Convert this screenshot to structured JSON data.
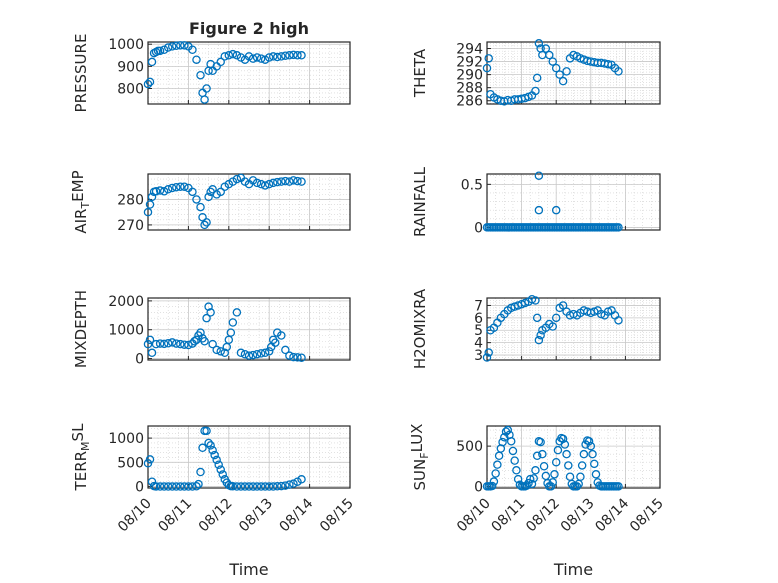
{
  "figure": {
    "title": "Figure 2 high"
  },
  "style": {
    "marker_color": "#0072bd",
    "grid_color": "#d0d0d0",
    "axis_color": "#262626"
  },
  "chart_data": [
    {
      "type": "scatter",
      "id": "pressure",
      "ylabel": "PRESSURE",
      "title": "Figure 2 high",
      "ylim": [
        730,
        1010
      ],
      "yticks": [
        800,
        900,
        1000
      ],
      "xlim": [
        0,
        5
      ],
      "x": [
        0.0,
        0.05,
        0.1,
        0.15,
        0.2,
        0.25,
        0.3,
        0.4,
        0.5,
        0.6,
        0.7,
        0.8,
        0.9,
        1.0,
        1.1,
        1.2,
        1.3,
        1.35,
        1.4,
        1.45,
        1.5,
        1.55,
        1.6,
        1.7,
        1.8,
        1.9,
        2.0,
        2.1,
        2.2,
        2.3,
        2.4,
        2.5,
        2.6,
        2.7,
        2.8,
        2.9,
        3.0,
        3.1,
        3.2,
        3.3,
        3.4,
        3.5,
        3.6,
        3.7,
        3.8
      ],
      "y": [
        820,
        830,
        920,
        960,
        965,
        970,
        970,
        975,
        985,
        990,
        993,
        995,
        995,
        990,
        975,
        930,
        860,
        780,
        750,
        800,
        880,
        910,
        880,
        900,
        920,
        945,
        950,
        955,
        950,
        940,
        930,
        945,
        935,
        940,
        935,
        930,
        940,
        945,
        942,
        945,
        948,
        950,
        952,
        950,
        950
      ]
    },
    {
      "type": "scatter",
      "id": "theta",
      "ylabel": "THETA",
      "ylim": [
        285.5,
        295
      ],
      "yticks": [
        286,
        288,
        290,
        292,
        294
      ],
      "xlim": [
        0,
        5
      ],
      "x": [
        0.0,
        0.05,
        0.1,
        0.2,
        0.3,
        0.4,
        0.5,
        0.6,
        0.7,
        0.8,
        0.9,
        1.0,
        1.1,
        1.2,
        1.3,
        1.4,
        1.45,
        1.5,
        1.55,
        1.6,
        1.7,
        1.8,
        1.9,
        2.0,
        2.1,
        2.2,
        2.3,
        2.4,
        2.5,
        2.6,
        2.7,
        2.8,
        2.9,
        3.0,
        3.1,
        3.2,
        3.3,
        3.4,
        3.5,
        3.6,
        3.7,
        3.8
      ],
      "y": [
        291,
        292.5,
        287,
        286.5,
        286.2,
        286,
        285.9,
        286.1,
        286,
        286.2,
        286.2,
        286.3,
        286.4,
        286.6,
        286.8,
        287.5,
        289.5,
        294.8,
        294,
        293,
        294,
        293,
        292,
        291,
        290,
        289,
        290.5,
        292.5,
        293,
        292.8,
        292.5,
        292.3,
        292.1,
        292,
        291.9,
        291.8,
        291.8,
        291.7,
        291.6,
        291.5,
        291,
        290.5
      ]
    },
    {
      "type": "scatter",
      "id": "air_temp",
      "ylabel": "AIR_TEMP",
      "ylim": [
        268,
        290
      ],
      "yticks": [
        270,
        280
      ],
      "xlim": [
        0,
        5
      ],
      "x": [
        0.0,
        0.05,
        0.1,
        0.15,
        0.2,
        0.3,
        0.4,
        0.5,
        0.6,
        0.7,
        0.8,
        0.9,
        1.0,
        1.1,
        1.2,
        1.3,
        1.35,
        1.4,
        1.45,
        1.5,
        1.55,
        1.6,
        1.7,
        1.8,
        1.9,
        2.0,
        2.1,
        2.2,
        2.3,
        2.4,
        2.5,
        2.6,
        2.7,
        2.8,
        2.9,
        3.0,
        3.1,
        3.2,
        3.3,
        3.4,
        3.5,
        3.6,
        3.7,
        3.8
      ],
      "y": [
        275,
        278,
        281,
        283,
        283.2,
        283.5,
        283.2,
        284,
        284.5,
        284.8,
        285,
        285,
        284.5,
        283,
        280,
        277,
        273,
        270,
        271,
        281,
        283,
        284,
        282,
        283,
        285,
        286,
        287,
        288,
        288.5,
        287,
        286,
        287.5,
        286.5,
        286,
        285.5,
        286,
        286.5,
        286.8,
        287,
        287.2,
        287,
        287.5,
        287.2,
        287
      ]
    },
    {
      "type": "scatter",
      "id": "rainfall",
      "ylabel": "RAINFALL",
      "ylim": [
        -0.03,
        0.62
      ],
      "yticks": [
        0,
        0.5
      ],
      "ytickLabels": [
        "0",
        "0.5"
      ],
      "xlim": [
        0,
        5
      ],
      "x": [
        0.0,
        0.05,
        0.1,
        0.15,
        0.2,
        0.25,
        0.3,
        0.35,
        0.4,
        0.45,
        0.5,
        0.55,
        0.6,
        0.65,
        0.7,
        0.75,
        0.8,
        0.85,
        0.9,
        0.95,
        1.0,
        1.05,
        1.1,
        1.15,
        1.2,
        1.25,
        1.3,
        1.35,
        1.4,
        1.45,
        1.5,
        1.55,
        1.6,
        1.65,
        1.7,
        1.75,
        1.8,
        1.85,
        1.9,
        1.95,
        2.0,
        2.05,
        2.1,
        2.15,
        2.2,
        2.25,
        2.3,
        2.35,
        2.4,
        2.45,
        2.5,
        2.55,
        2.6,
        2.65,
        2.7,
        2.75,
        2.8,
        2.85,
        2.9,
        2.95,
        3.0,
        3.05,
        3.1,
        3.15,
        3.2,
        3.25,
        3.3,
        3.35,
        3.4,
        3.45,
        3.5,
        3.55,
        3.6,
        3.65,
        3.7,
        3.75,
        3.8,
        1.5,
        1.5,
        2.0
      ],
      "y": [
        0,
        0,
        0,
        0,
        0,
        0,
        0,
        0,
        0,
        0,
        0,
        0,
        0,
        0,
        0,
        0,
        0,
        0,
        0,
        0,
        0,
        0,
        0,
        0,
        0,
        0,
        0,
        0,
        0,
        0,
        0,
        0,
        0,
        0,
        0,
        0,
        0,
        0,
        0,
        0,
        0,
        0,
        0,
        0,
        0,
        0,
        0,
        0,
        0,
        0,
        0,
        0,
        0,
        0,
        0,
        0,
        0,
        0,
        0,
        0,
        0,
        0,
        0,
        0,
        0,
        0,
        0,
        0,
        0,
        0,
        0,
        0,
        0,
        0,
        0,
        0,
        0,
        0.6,
        0.2,
        0.2
      ]
    },
    {
      "type": "scatter",
      "id": "mixdepth",
      "ylabel": "MIXDEPTH",
      "ylim": [
        -50,
        2100
      ],
      "yticks": [
        0,
        1000,
        2000
      ],
      "xlim": [
        0,
        5
      ],
      "x": [
        0.0,
        0.05,
        0.1,
        0.2,
        0.3,
        0.4,
        0.5,
        0.6,
        0.7,
        0.8,
        0.9,
        1.0,
        1.1,
        1.15,
        1.2,
        1.25,
        1.3,
        1.35,
        1.4,
        1.45,
        1.5,
        1.55,
        1.6,
        1.7,
        1.8,
        1.9,
        1.95,
        2.0,
        2.05,
        2.1,
        2.2,
        2.3,
        2.4,
        2.5,
        2.6,
        2.7,
        2.8,
        2.9,
        3.0,
        3.05,
        3.1,
        3.15,
        3.2,
        3.3,
        3.4,
        3.5,
        3.6,
        3.7,
        3.8
      ],
      "y": [
        500,
        650,
        200,
        500,
        520,
        510,
        530,
        560,
        520,
        500,
        480,
        470,
        520,
        600,
        650,
        800,
        900,
        700,
        600,
        1400,
        1800,
        1600,
        500,
        300,
        250,
        200,
        400,
        650,
        900,
        1250,
        1600,
        200,
        150,
        100,
        120,
        150,
        180,
        200,
        250,
        400,
        650,
        550,
        900,
        800,
        300,
        100,
        50,
        40,
        30
      ]
    },
    {
      "type": "scatter",
      "id": "h2omixra",
      "ylabel": "H2OMIXRA",
      "ylim": [
        2.6,
        7.6
      ],
      "yticks": [
        3,
        4,
        5,
        6,
        7
      ],
      "xlim": [
        0,
        5
      ],
      "x": [
        0.0,
        0.05,
        0.1,
        0.2,
        0.3,
        0.4,
        0.5,
        0.6,
        0.7,
        0.8,
        0.9,
        1.0,
        1.1,
        1.2,
        1.3,
        1.4,
        1.45,
        1.5,
        1.55,
        1.6,
        1.7,
        1.8,
        1.9,
        2.0,
        2.1,
        2.2,
        2.3,
        2.4,
        2.5,
        2.6,
        2.7,
        2.8,
        2.9,
        3.0,
        3.1,
        3.2,
        3.3,
        3.4,
        3.5,
        3.6,
        3.7,
        3.8
      ],
      "y": [
        2.8,
        3.2,
        5,
        5.2,
        5.6,
        6,
        6.3,
        6.6,
        6.8,
        6.9,
        7,
        7.1,
        7.2,
        7.3,
        7.5,
        7.4,
        6,
        4.2,
        4.6,
        5,
        5.2,
        5.5,
        5.3,
        6,
        6.8,
        7,
        6.5,
        6.2,
        6.3,
        6.2,
        6.4,
        6.6,
        6.5,
        6.4,
        6.5,
        6.6,
        6.3,
        6.2,
        6.5,
        6.6,
        6.2,
        5.8
      ]
    },
    {
      "type": "scatter",
      "id": "terr_msl",
      "ylabel": "TERR_MSL",
      "ylim": [
        -30,
        1250
      ],
      "yticks": [
        0,
        500,
        1000
      ],
      "xlim": [
        0,
        5
      ],
      "xticks": [
        0,
        1,
        2,
        3,
        4,
        5
      ],
      "xtickLabels": [
        "08/10",
        "08/11",
        "08/12",
        "08/13",
        "08/14",
        "08/15"
      ],
      "xlabel": "Time",
      "x": [
        0.0,
        0.05,
        0.1,
        0.15,
        0.2,
        0.3,
        0.4,
        0.5,
        0.6,
        0.7,
        0.8,
        0.9,
        1.0,
        1.1,
        1.2,
        1.25,
        1.3,
        1.35,
        1.4,
        1.45,
        1.5,
        1.55,
        1.6,
        1.65,
        1.7,
        1.75,
        1.8,
        1.85,
        1.9,
        1.95,
        2.0,
        2.05,
        2.1,
        2.2,
        2.3,
        2.4,
        2.5,
        2.6,
        2.7,
        2.8,
        2.9,
        3.0,
        3.1,
        3.2,
        3.3,
        3.4,
        3.5,
        3.6,
        3.7,
        3.8
      ],
      "y": [
        480,
        560,
        100,
        10,
        0,
        0,
        0,
        0,
        0,
        0,
        0,
        0,
        0,
        0,
        5,
        50,
        300,
        800,
        1150,
        1150,
        900,
        850,
        750,
        650,
        550,
        450,
        350,
        250,
        150,
        80,
        30,
        10,
        5,
        0,
        0,
        0,
        0,
        0,
        0,
        0,
        0,
        0,
        0,
        5,
        10,
        20,
        40,
        60,
        100,
        150
      ]
    },
    {
      "type": "scatter",
      "id": "sun_flux",
      "ylabel": "SUN_FLUX",
      "ylim": [
        -20,
        750
      ],
      "yticks": [
        0,
        500
      ],
      "xlim": [
        0,
        5
      ],
      "xticks": [
        0,
        1,
        2,
        3,
        4,
        5
      ],
      "xtickLabels": [
        "08/10",
        "08/11",
        "08/12",
        "08/13",
        "08/14",
        "08/15"
      ],
      "xlabel": "Time",
      "x": [
        0.0,
        0.05,
        0.1,
        0.15,
        0.2,
        0.25,
        0.3,
        0.35,
        0.4,
        0.45,
        0.5,
        0.55,
        0.6,
        0.65,
        0.7,
        0.75,
        0.8,
        0.85,
        0.9,
        0.95,
        1.0,
        1.05,
        1.1,
        1.15,
        1.2,
        1.25,
        1.3,
        1.35,
        1.4,
        1.45,
        1.5,
        1.55,
        1.6,
        1.65,
        1.7,
        1.75,
        1.8,
        1.85,
        1.9,
        1.95,
        2.0,
        2.05,
        2.1,
        2.15,
        2.2,
        2.25,
        2.3,
        2.35,
        2.4,
        2.45,
        2.5,
        2.55,
        2.6,
        2.65,
        2.7,
        2.75,
        2.8,
        2.85,
        2.9,
        2.95,
        3.0,
        3.05,
        3.1,
        3.15,
        3.2,
        3.25,
        3.3,
        3.35,
        3.4,
        3.45,
        3.5,
        3.55,
        3.6,
        3.65,
        3.7,
        3.75,
        3.8
      ],
      "y": [
        0,
        0,
        0,
        5,
        60,
        160,
        270,
        380,
        470,
        550,
        610,
        680,
        700,
        640,
        560,
        440,
        320,
        200,
        90,
        20,
        0,
        0,
        0,
        10,
        40,
        90,
        30,
        100,
        200,
        380,
        560,
        550,
        400,
        250,
        130,
        40,
        0,
        0,
        50,
        150,
        300,
        450,
        560,
        600,
        590,
        520,
        400,
        260,
        120,
        30,
        0,
        0,
        0,
        30,
        120,
        260,
        400,
        520,
        570,
        560,
        500,
        400,
        280,
        150,
        50,
        10,
        0,
        0,
        0,
        0,
        0,
        0,
        0,
        0,
        0,
        0,
        0
      ]
    }
  ]
}
